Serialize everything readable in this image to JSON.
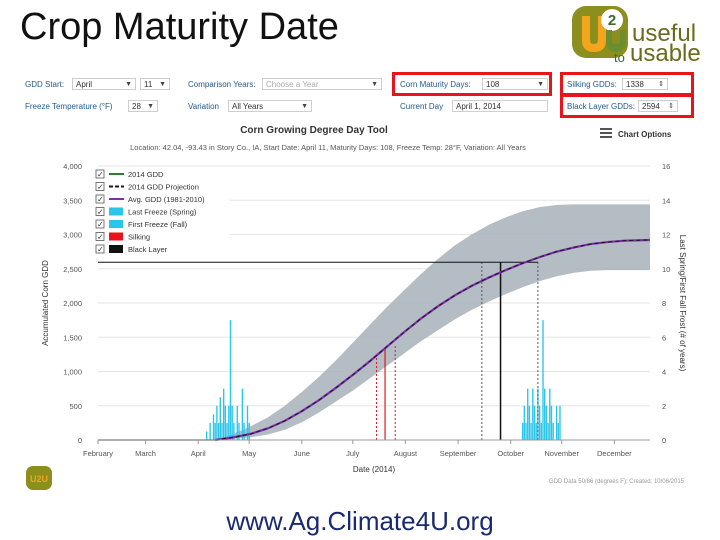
{
  "slide": {
    "title": "Crop Maturity Date",
    "logo": {
      "mark": "U2U",
      "line1": "useful",
      "to": "to",
      "line2": "usable"
    },
    "url": "www.Ag.Climate4U.org"
  },
  "controls": {
    "gdd_start_label": "GDD Start:",
    "gdd_start_month": "April",
    "gdd_start_day": "11",
    "comparison_label": "Comparison Years:",
    "comparison_placeholder": "Choose a Year",
    "maturity_label": "Corn Maturity Days:",
    "maturity_value": "108",
    "silking_label": "Silking GDDs:",
    "silking_value": "1338",
    "freeze_label": "Freeze Temperature (°F)",
    "freeze_value": "28",
    "variation_label": "Variation",
    "variation_value": "All Years",
    "current_day_label": "Current Day",
    "current_day_value": "April 1, 2014",
    "black_layer_label": "Black Layer GDDs:",
    "black_layer_value": "2594"
  },
  "chart_header": {
    "title": "Corn Growing Degree Day Tool",
    "subtitle": "Location: 42.04, -93.43 in Story Co., IA, Start Date: April 11, Maturity Days: 108, Freeze Temp: 28°F, Variation: All Years",
    "options_label": "Chart Options",
    "menu_icon": "hamburger-icon",
    "source_note": "GDD Data 50/86 (degrees F); Created: 10/06/2015"
  },
  "chart_data": {
    "type": "line",
    "xlabel": "Date (2014)",
    "ylabel_left": "Accumulated Corn GDD",
    "ylabel_right": "Last Spring/First Fall Frost (# of years)",
    "x_ticks": [
      "February",
      "March",
      "April",
      "May",
      "June",
      "July",
      "August",
      "September",
      "October",
      "November",
      "December"
    ],
    "y_left_ticks": [
      0,
      500,
      1000,
      1500,
      2000,
      2500,
      3000,
      3500,
      4000
    ],
    "y_right_ticks": [
      0,
      2,
      4,
      6,
      8,
      10,
      12,
      14,
      16
    ],
    "ylim_left": [
      0,
      4000
    ],
    "ylim_right": [
      0,
      16
    ],
    "x_range_days": [
      0,
      325
    ],
    "x_tick_days": [
      0,
      28,
      59,
      89,
      120,
      150,
      181,
      212,
      243,
      273,
      304
    ],
    "legend": [
      {
        "label": "2014 GDD",
        "color": "#2e7d32",
        "style": "solid",
        "checked": true
      },
      {
        "label": "2014 GDD Projection",
        "color": "#1a1a1a",
        "style": "dashed",
        "checked": true
      },
      {
        "label": "Avg. GDD (1981-2010)",
        "color": "#7b2fa8",
        "style": "solid",
        "checked": true
      },
      {
        "label": "Last Freeze (Spring)",
        "color": "#29c5ea",
        "style": "box",
        "checked": true
      },
      {
        "label": "First Freeze (Fall)",
        "color": "#29c5ea",
        "style": "box",
        "checked": true
      },
      {
        "label": "Silking",
        "color": "#e8141a",
        "style": "box",
        "checked": true
      },
      {
        "label": "Black Layer",
        "color": "#111111",
        "style": "box",
        "checked": true
      }
    ],
    "avg_gdd": [
      [
        69,
        0
      ],
      [
        80,
        40
      ],
      [
        90,
        90
      ],
      [
        100,
        170
      ],
      [
        110,
        280
      ],
      [
        120,
        420
      ],
      [
        130,
        580
      ],
      [
        140,
        760
      ],
      [
        150,
        950
      ],
      [
        160,
        1150
      ],
      [
        170,
        1360
      ],
      [
        180,
        1570
      ],
      [
        190,
        1770
      ],
      [
        200,
        1950
      ],
      [
        210,
        2110
      ],
      [
        220,
        2250
      ],
      [
        230,
        2370
      ],
      [
        240,
        2480
      ],
      [
        250,
        2580
      ],
      [
        260,
        2670
      ],
      [
        270,
        2750
      ],
      [
        280,
        2810
      ],
      [
        290,
        2860
      ],
      [
        300,
        2890
      ],
      [
        310,
        2910
      ],
      [
        325,
        2920
      ]
    ],
    "range_band": [
      [
        69,
        0,
        0
      ],
      [
        80,
        20,
        90
      ],
      [
        90,
        40,
        200
      ],
      [
        100,
        80,
        330
      ],
      [
        110,
        150,
        500
      ],
      [
        120,
        260,
        700
      ],
      [
        130,
        400,
        920
      ],
      [
        140,
        560,
        1160
      ],
      [
        150,
        720,
        1420
      ],
      [
        160,
        900,
        1680
      ],
      [
        170,
        1080,
        1940
      ],
      [
        180,
        1260,
        2180
      ],
      [
        190,
        1440,
        2420
      ],
      [
        200,
        1600,
        2640
      ],
      [
        210,
        1760,
        2840
      ],
      [
        220,
        1900,
        3000
      ],
      [
        230,
        2020,
        3140
      ],
      [
        240,
        2130,
        3250
      ],
      [
        250,
        2230,
        3340
      ],
      [
        260,
        2320,
        3400
      ],
      [
        270,
        2390,
        3430
      ],
      [
        280,
        2440,
        3440
      ],
      [
        290,
        2470,
        3440
      ],
      [
        300,
        2480,
        3440
      ],
      [
        310,
        2480,
        3440
      ],
      [
        325,
        2480,
        3440
      ]
    ],
    "silking": {
      "day": 169,
      "gdd": 1338,
      "early_day": 164,
      "late_day": 175
    },
    "black_layer": {
      "day": 237,
      "gdd": 2594,
      "early_day": 226,
      "late_day": 259
    },
    "last_freeze_spring": [
      [
        64,
        0.5
      ],
      [
        66,
        1
      ],
      [
        68,
        1.5
      ],
      [
        69,
        1
      ],
      [
        70,
        2
      ],
      [
        71,
        1
      ],
      [
        72,
        2.5
      ],
      [
        73,
        1
      ],
      [
        74,
        3
      ],
      [
        75,
        2
      ],
      [
        76,
        1
      ],
      [
        77,
        2
      ],
      [
        78,
        7
      ],
      [
        79,
        2
      ],
      [
        80,
        1
      ],
      [
        82,
        2
      ],
      [
        83,
        1
      ],
      [
        85,
        3
      ],
      [
        86,
        1
      ],
      [
        88,
        2
      ],
      [
        89,
        1
      ]
    ],
    "first_freeze_fall": [
      [
        250,
        1
      ],
      [
        251,
        2
      ],
      [
        252,
        1
      ],
      [
        253,
        3
      ],
      [
        254,
        2
      ],
      [
        255,
        1
      ],
      [
        256,
        3
      ],
      [
        257,
        2
      ],
      [
        258,
        1
      ],
      [
        259,
        3
      ],
      [
        260,
        2
      ],
      [
        261,
        1
      ],
      [
        262,
        7
      ],
      [
        263,
        3
      ],
      [
        264,
        2
      ],
      [
        265,
        1
      ],
      [
        266,
        3
      ],
      [
        267,
        2
      ],
      [
        268,
        1
      ],
      [
        270,
        2
      ],
      [
        271,
        1
      ],
      [
        272,
        2
      ]
    ]
  }
}
